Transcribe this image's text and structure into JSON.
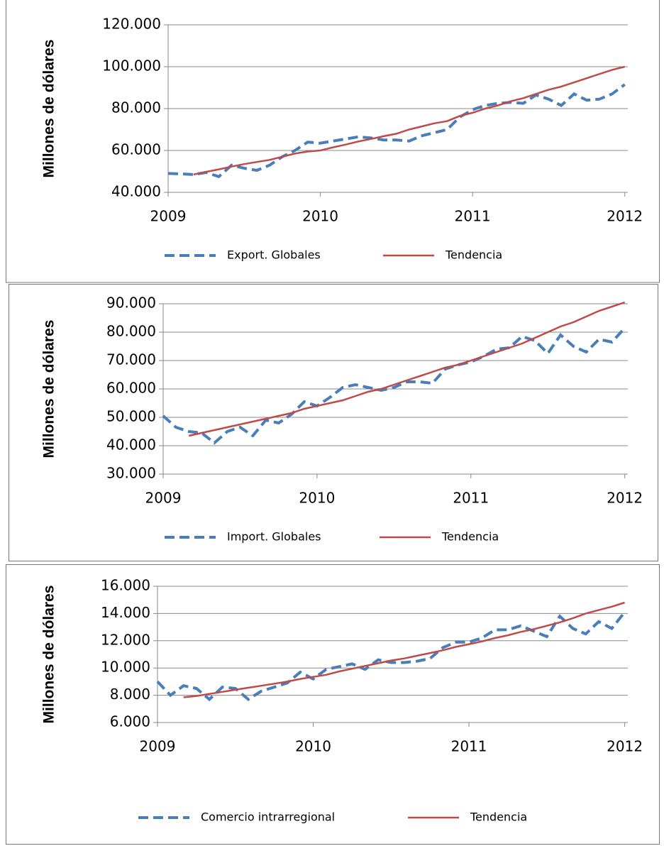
{
  "chart_data": [
    {
      "type": "line",
      "ylabel": "Millones de dólares",
      "x": [
        2009,
        2009.083,
        2009.167,
        2009.25,
        2009.333,
        2009.417,
        2009.5,
        2009.583,
        2009.667,
        2009.75,
        2009.833,
        2009.917,
        2010,
        2010.083,
        2010.167,
        2010.25,
        2010.333,
        2010.417,
        2010.5,
        2010.583,
        2010.667,
        2010.75,
        2010.833,
        2010.917,
        2011,
        2011.083,
        2011.167,
        2011.25,
        2011.333,
        2011.417,
        2011.5,
        2011.583,
        2011.667,
        2011.75,
        2011.833,
        2011.917,
        2012
      ],
      "series": [
        {
          "name": "Export. Globales",
          "color": "#4a7ebb",
          "dashed": true,
          "values": [
            49000,
            48800,
            48500,
            49500,
            47500,
            53000,
            51500,
            50500,
            53000,
            57000,
            60000,
            64000,
            63500,
            64500,
            65500,
            66500,
            66000,
            65000,
            65000,
            64500,
            67000,
            68500,
            70000,
            76000,
            79500,
            81500,
            82500,
            83000,
            82500,
            86500,
            84500,
            81500,
            87000,
            84000,
            84500,
            87000,
            91500
          ]
        },
        {
          "name": "Tendencia",
          "color": "#be4b48",
          "dashed": false,
          "values": [
            null,
            null,
            48500,
            49800,
            51000,
            52300,
            53500,
            54500,
            55500,
            57000,
            58500,
            59500,
            60000,
            61500,
            62800,
            64300,
            65500,
            66800,
            68000,
            70000,
            71500,
            73000,
            74000,
            76500,
            78000,
            80000,
            81500,
            83500,
            85000,
            87000,
            89000,
            90500,
            92500,
            94500,
            96500,
            98500,
            100000
          ]
        }
      ],
      "xlim": [
        2009,
        2012.02
      ],
      "xticks": [
        2009,
        2010,
        2011,
        2012
      ],
      "ylim": [
        40000,
        120000
      ],
      "yticks": [
        {
          "value": 40000,
          "label": "40.000"
        },
        {
          "value": 60000,
          "label": "60.000"
        },
        {
          "value": 80000,
          "label": "80.000"
        },
        {
          "value": 100000,
          "label": "100.000"
        },
        {
          "value": 120000,
          "label": "120.000"
        }
      ],
      "grid": true,
      "legend": "bottom"
    },
    {
      "type": "line",
      "ylabel": "Millones de dólares",
      "x": [
        2009,
        2009.083,
        2009.167,
        2009.25,
        2009.333,
        2009.417,
        2009.5,
        2009.583,
        2009.667,
        2009.75,
        2009.833,
        2009.917,
        2010,
        2010.083,
        2010.167,
        2010.25,
        2010.333,
        2010.417,
        2010.5,
        2010.583,
        2010.667,
        2010.75,
        2010.833,
        2010.917,
        2011,
        2011.083,
        2011.167,
        2011.25,
        2011.333,
        2011.417,
        2011.5,
        2011.583,
        2011.667,
        2011.75,
        2011.833,
        2011.917,
        2012
      ],
      "series": [
        {
          "name": "Import. Globales",
          "color": "#4a7ebb",
          "dashed": true,
          "values": [
            50500,
            46500,
            45000,
            44500,
            41000,
            45000,
            46500,
            43500,
            49000,
            48000,
            51000,
            55500,
            54000,
            57000,
            60500,
            61500,
            60500,
            59500,
            60500,
            62500,
            62500,
            62000,
            67000,
            68500,
            69500,
            71500,
            74000,
            74500,
            78500,
            77000,
            72500,
            79000,
            75000,
            73000,
            77500,
            76500,
            81500
          ]
        },
        {
          "name": "Tendencia",
          "color": "#be4b48",
          "dashed": false,
          "values": [
            null,
            null,
            43500,
            44500,
            45500,
            46500,
            47500,
            48500,
            49500,
            50500,
            51500,
            53000,
            54000,
            55000,
            56000,
            57500,
            59000,
            60000,
            61500,
            63000,
            64500,
            66000,
            67500,
            68500,
            70000,
            71500,
            73000,
            74500,
            76000,
            78000,
            80000,
            82000,
            83500,
            85500,
            87500,
            89000,
            90500
          ]
        }
      ],
      "xlim": [
        2009,
        2012.02
      ],
      "xticks": [
        2009,
        2010,
        2011,
        2012
      ],
      "ylim": [
        30000,
        90000
      ],
      "yticks": [
        {
          "value": 30000,
          "label": "30.000"
        },
        {
          "value": 40000,
          "label": "40.000"
        },
        {
          "value": 50000,
          "label": "50.000"
        },
        {
          "value": 60000,
          "label": "60.000"
        },
        {
          "value": 70000,
          "label": "70.000"
        },
        {
          "value": 80000,
          "label": "80.000"
        },
        {
          "value": 90000,
          "label": "90.000"
        }
      ],
      "grid": true,
      "legend": "bottom"
    },
    {
      "type": "line",
      "ylabel": "Millones de dólares",
      "x": [
        2009,
        2009.083,
        2009.167,
        2009.25,
        2009.333,
        2009.417,
        2009.5,
        2009.583,
        2009.667,
        2009.75,
        2009.833,
        2009.917,
        2010,
        2010.083,
        2010.167,
        2010.25,
        2010.333,
        2010.417,
        2010.5,
        2010.583,
        2010.667,
        2010.75,
        2010.833,
        2010.917,
        2011,
        2011.083,
        2011.167,
        2011.25,
        2011.333,
        2011.417,
        2011.5,
        2011.583,
        2011.667,
        2011.75,
        2011.833,
        2011.917,
        2012
      ],
      "series": [
        {
          "name": "Comercio intrarregional",
          "color": "#4a7ebb",
          "dashed": true,
          "values": [
            9000,
            8000,
            8700,
            8500,
            7700,
            8600,
            8500,
            7700,
            8300,
            8600,
            8900,
            9700,
            9200,
            9900,
            10100,
            10300,
            9900,
            10600,
            10400,
            10400,
            10500,
            10700,
            11500,
            11900,
            11900,
            12200,
            12800,
            12800,
            13100,
            12700,
            12300,
            13800,
            12900,
            12500,
            13400,
            12900,
            14100
          ]
        },
        {
          "name": "Tendencia",
          "color": "#be4b48",
          "dashed": false,
          "values": [
            null,
            null,
            7850,
            7950,
            8100,
            8250,
            8400,
            8550,
            8700,
            8850,
            9000,
            9200,
            9350,
            9500,
            9750,
            9950,
            10150,
            10350,
            10550,
            10700,
            10900,
            11100,
            11300,
            11550,
            11750,
            11950,
            12200,
            12400,
            12650,
            12850,
            13100,
            13350,
            13650,
            14000,
            14250,
            14500,
            14800
          ]
        }
      ],
      "xlim": [
        2009,
        2012.02
      ],
      "xticks": [
        2009,
        2010,
        2011,
        2012
      ],
      "ylim": [
        6000,
        16000
      ],
      "yticks": [
        {
          "value": 6000,
          "label": "6.000"
        },
        {
          "value": 8000,
          "label": "8.000"
        },
        {
          "value": 10000,
          "label": "10.000"
        },
        {
          "value": 12000,
          "label": "12.000"
        },
        {
          "value": 14000,
          "label": "14.000"
        },
        {
          "value": 16000,
          "label": "16.000"
        }
      ],
      "grid": true,
      "legend": "bottom"
    }
  ]
}
